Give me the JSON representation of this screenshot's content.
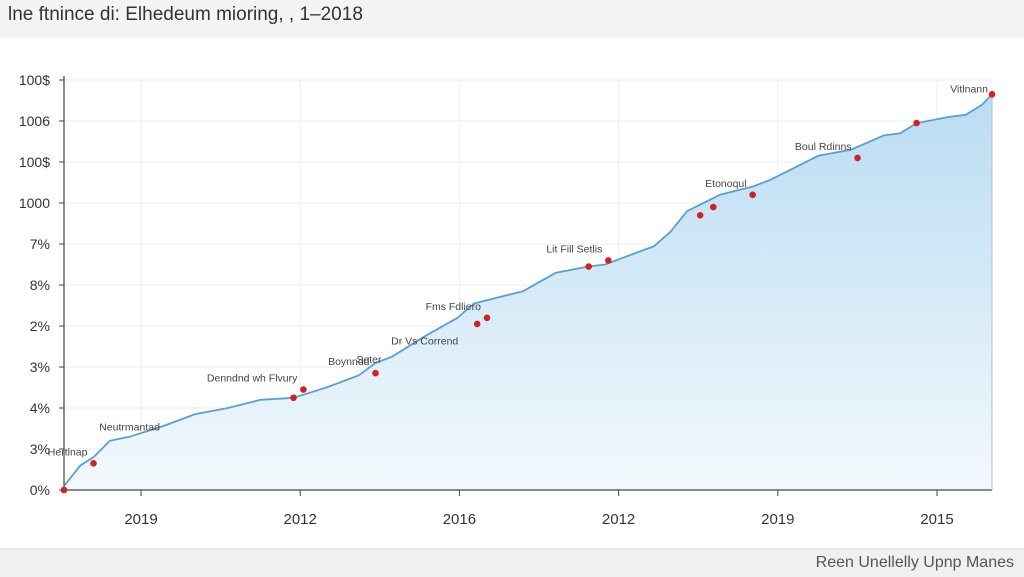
{
  "header": {
    "title": "lne ftnince di: Elhedeum mioring, , 1–2018"
  },
  "footer": {
    "text": "Reen Unellelly Upnp Manes"
  },
  "colors": {
    "line": "#5a9fd4",
    "area_top": "#b9dcf3",
    "area_bottom": "#f3f9fd",
    "marker": "#d62020",
    "grid": "#eeeeee",
    "axis": "#444444"
  },
  "chart_data": {
    "type": "area",
    "title": "lne ftnince di: Elhedeum mioring, , 1–2018",
    "xlabel": "",
    "ylabel": "",
    "y_tick_labels": [
      "0%",
      "3%",
      "4%",
      "3%",
      "2%",
      "8%",
      "7%",
      "1000",
      "100$",
      "1006",
      "100$"
    ],
    "x_tick_labels": [
      "2019",
      "2012",
      "2016",
      "2012",
      "2019",
      "2015"
    ],
    "grid": true,
    "legend": "none",
    "ylim": [
      0,
      10
    ],
    "xlim": [
      0,
      28.3
    ],
    "series": [
      {
        "x": [
          0,
          0.5,
          0.9,
          1.4,
          2.0,
          3.0,
          4.0,
          5.0,
          6.0,
          7.0,
          8.0,
          8.5,
          9.0,
          9.5,
          10.0,
          11.0,
          12.0,
          12.5,
          13.0,
          14.0,
          15.0,
          16.0,
          16.5,
          17.0,
          18.0,
          18.5,
          19.0,
          20.0,
          21.0,
          21.5,
          22.0,
          23.0,
          24.0,
          25.0,
          25.5,
          26.0,
          27.0,
          27.5,
          28.0,
          28.3
        ],
        "y": [
          0.1,
          0.6,
          0.8,
          1.2,
          1.3,
          1.55,
          1.85,
          2.0,
          2.2,
          2.25,
          2.5,
          2.65,
          2.8,
          3.1,
          3.25,
          3.75,
          4.2,
          4.55,
          4.65,
          4.85,
          5.3,
          5.45,
          5.5,
          5.65,
          5.95,
          6.3,
          6.8,
          7.2,
          7.4,
          7.55,
          7.75,
          8.15,
          8.3,
          8.65,
          8.7,
          8.95,
          9.1,
          9.15,
          9.4,
          9.65
        ]
      }
    ],
    "markers": [
      {
        "x": 0.0,
        "y": 0.0,
        "label": ""
      },
      {
        "x": 0.9,
        "y": 0.65,
        "label": "Hertlnap"
      },
      {
        "x": 7.0,
        "y": 2.25,
        "label": ""
      },
      {
        "x": 7.3,
        "y": 2.45,
        "label": "Denndnd wh Flvury"
      },
      {
        "x": 9.5,
        "y": 2.85,
        "label": "Boynndd"
      },
      {
        "x": 12.6,
        "y": 4.05,
        "label": ""
      },
      {
        "x": 12.9,
        "y": 4.2,
        "label": "Fms Fdliero"
      },
      {
        "x": 16.0,
        "y": 5.45,
        "label": ""
      },
      {
        "x": 16.6,
        "y": 5.6,
        "label": "Lit Fill Setlis"
      },
      {
        "x": 19.4,
        "y": 6.7,
        "label": ""
      },
      {
        "x": 19.8,
        "y": 6.9,
        "label": ""
      },
      {
        "x": 21.0,
        "y": 7.2,
        "label": "Etonoqul"
      },
      {
        "x": 24.2,
        "y": 8.1,
        "label": "Boul Rdinns"
      },
      {
        "x": 26.0,
        "y": 8.95,
        "label": ""
      },
      {
        "x": 28.3,
        "y": 9.65,
        "label": "Vitlnann"
      }
    ],
    "annotations": [
      {
        "x": 2.0,
        "y": 1.45,
        "label": "Neutrmantad"
      },
      {
        "x": 9.3,
        "y": 3.1,
        "label": "Seter"
      },
      {
        "x": 11.0,
        "y": 3.55,
        "label": "Dr Vs Corrend"
      }
    ]
  }
}
